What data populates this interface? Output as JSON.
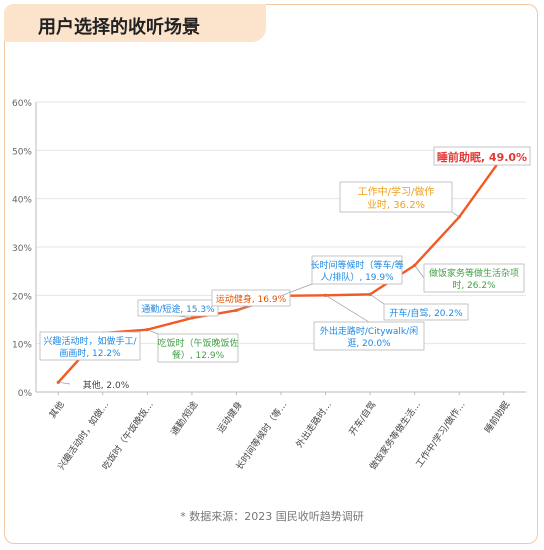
{
  "header": {
    "title": "用户选择的收听场景"
  },
  "source": "* 数据来源：2023 国民收听趋势调研",
  "colors": {
    "line": "#f25a24",
    "title_bg": "#fce3cc",
    "border": "#f3c8a4"
  },
  "chart_data": {
    "type": "line",
    "title": "用户选择的收听场景",
    "xlabel": "",
    "ylabel": "",
    "ylim": [
      0,
      60
    ],
    "yticks": [
      0,
      10,
      20,
      30,
      40,
      50,
      60
    ],
    "ytick_labels": [
      "0%",
      "10%",
      "20%",
      "30%",
      "40%",
      "50%",
      "60%"
    ],
    "grid": true,
    "categories": [
      "其他",
      "兴趣活动时，如做…",
      "吃饭时（午饭晚饭…",
      "通勤/短途",
      "运动健身",
      "长时间等候时（等…",
      "外出走路时…",
      "开车/自驾",
      "做饭家务等做生活…",
      "工作中/学习/做作…",
      "睡前助眠"
    ],
    "values": [
      2.0,
      12.2,
      12.9,
      15.3,
      16.9,
      19.9,
      20.0,
      20.2,
      26.2,
      36.2,
      49.0
    ],
    "annotations": [
      {
        "text": "其他, 2.0%",
        "color": "#444444",
        "box": false
      },
      {
        "text": "兴趣活动时，如做手工/画画时, 12.2%",
        "color": "#1e88e5",
        "box": true
      },
      {
        "text": "吃饭时（午饭晚饭佐餐）, 12.9%",
        "color": "#43a047",
        "box": true
      },
      {
        "text": "通勤/短途, 15.3%",
        "color": "#1e88e5",
        "box": true
      },
      {
        "text": "运动健身, 16.9%",
        "color": "#e65100",
        "box": true
      },
      {
        "text": "长时间等候时（等车/等人/排队）, 19.9%",
        "color": "#1e88e5",
        "box": true
      },
      {
        "text": "外出走路时/Citywalk/闲逛, 20.0%",
        "color": "#1e88e5",
        "box": true
      },
      {
        "text": "开车/自驾, 20.2%",
        "color": "#1e88e5",
        "box": true
      },
      {
        "text": "做饭家务等做生活杂项时, 26.2%",
        "color": "#43a047",
        "box": true
      },
      {
        "text": "工作中/学习/做作业时, 36.2%",
        "color": "#f0a020",
        "box": true
      },
      {
        "text": "睡前助眠, 49.0%",
        "color": "#e53935",
        "box": true
      }
    ]
  }
}
